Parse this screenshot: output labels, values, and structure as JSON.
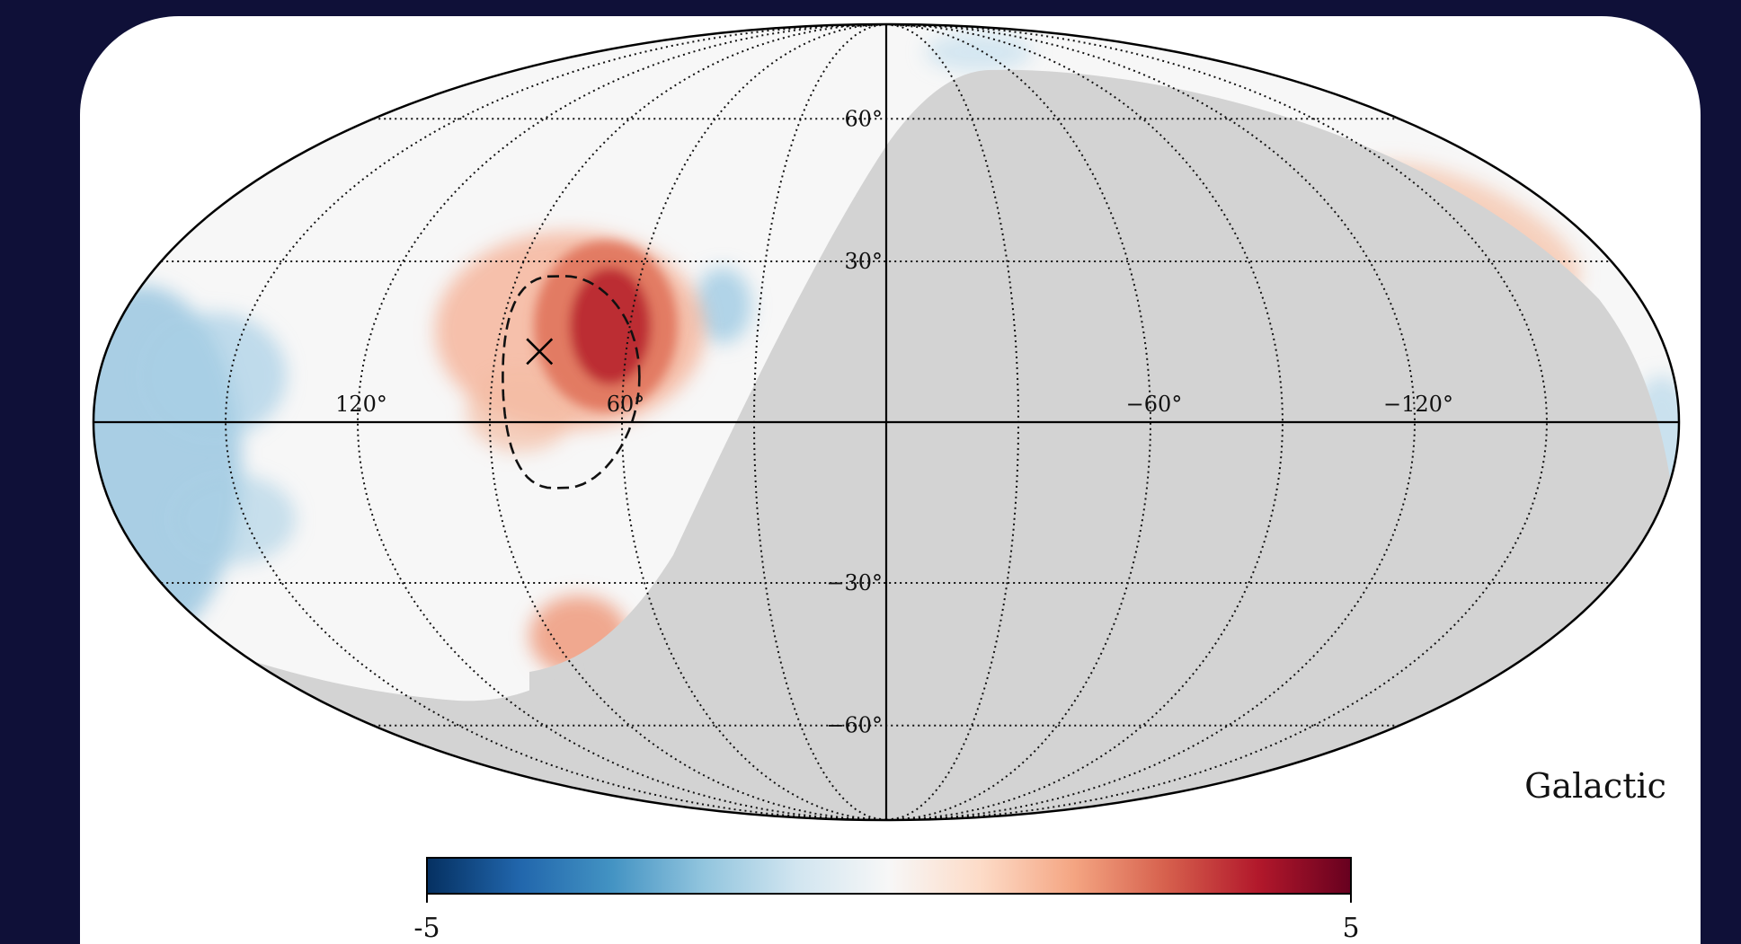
{
  "map": {
    "coordinate_system": "Galactic",
    "projection": "mollweide",
    "longitude_labels": [
      {
        "lon": 120,
        "text": "120°"
      },
      {
        "lon": 60,
        "text": "60°"
      },
      {
        "lon": -60,
        "text": "−60°"
      },
      {
        "lon": -120,
        "text": "−120°"
      }
    ],
    "latitude_labels": [
      {
        "lat": 60,
        "text": "60°"
      },
      {
        "lat": 30,
        "text": "30°"
      },
      {
        "lat": -30,
        "text": "−30°"
      },
      {
        "lat": -60,
        "text": "−60°"
      }
    ],
    "graticule": {
      "meridian_step_deg": 30,
      "parallel_step_deg": 30,
      "style": "dotted"
    },
    "marker": {
      "lon": 80,
      "lat": 13,
      "symbol": "x"
    },
    "contour": {
      "center_lon": 78,
      "center_lat": 10,
      "style": "dashed"
    },
    "masked_region_color": "#d3d3d3"
  },
  "colorbar": {
    "min_label": "-5",
    "max_label": "5",
    "colormap": "RdBu_r",
    "colors": [
      "#053061",
      "#2166ac",
      "#4393c3",
      "#92c5de",
      "#d1e5f0",
      "#f7f7f7",
      "#fddbc7",
      "#f4a582",
      "#d6604d",
      "#b2182b",
      "#67001f"
    ]
  }
}
